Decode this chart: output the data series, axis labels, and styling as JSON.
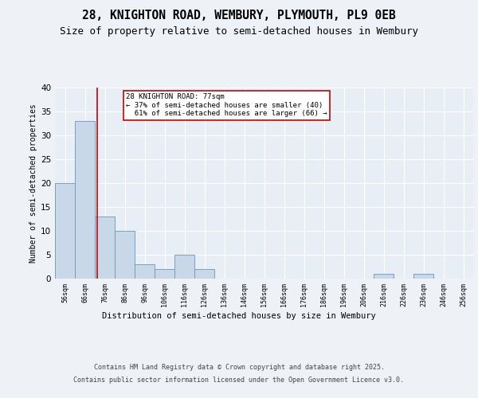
{
  "title1": "28, KNIGHTON ROAD, WEMBURY, PLYMOUTH, PL9 0EB",
  "title2": "Size of property relative to semi-detached houses in Wembury",
  "xlabel": "Distribution of semi-detached houses by size in Wembury",
  "ylabel": "Number of semi-detached properties",
  "bin_labels": [
    "56sqm",
    "66sqm",
    "76sqm",
    "86sqm",
    "96sqm",
    "106sqm",
    "116sqm",
    "126sqm",
    "136sqm",
    "146sqm",
    "156sqm",
    "166sqm",
    "176sqm",
    "186sqm",
    "196sqm",
    "206sqm",
    "216sqm",
    "226sqm",
    "236sqm",
    "246sqm",
    "256sqm"
  ],
  "bin_edges": [
    56,
    66,
    76,
    86,
    96,
    106,
    116,
    126,
    136,
    146,
    156,
    166,
    176,
    186,
    196,
    206,
    216,
    226,
    236,
    246,
    256
  ],
  "values": [
    20,
    33,
    13,
    10,
    3,
    2,
    5,
    2,
    0,
    0,
    0,
    0,
    0,
    0,
    0,
    0,
    1,
    0,
    1,
    0
  ],
  "bar_color": "#c8d8e8",
  "bar_edge_color": "#6699bb",
  "property_size": 77,
  "property_line_color": "#cc0000",
  "annotation_line1": "28 KNIGHTON ROAD: 77sqm",
  "annotation_line2": "← 37% of semi-detached houses are smaller (40)",
  "annotation_line3": "  61% of semi-detached houses are larger (66) →",
  "annotation_box_color": "#ffffff",
  "annotation_box_edge": "#cc0000",
  "ylim": [
    0,
    40
  ],
  "yticks": [
    0,
    5,
    10,
    15,
    20,
    25,
    30,
    35,
    40
  ],
  "footer_line1": "Contains HM Land Registry data © Crown copyright and database right 2025.",
  "footer_line2": "Contains public sector information licensed under the Open Government Licence v3.0.",
  "bg_color": "#eef2f6",
  "plot_bg_color": "#e8eef6",
  "grid_color": "#ffffff",
  "title1_fontsize": 10.5,
  "title2_fontsize": 9
}
